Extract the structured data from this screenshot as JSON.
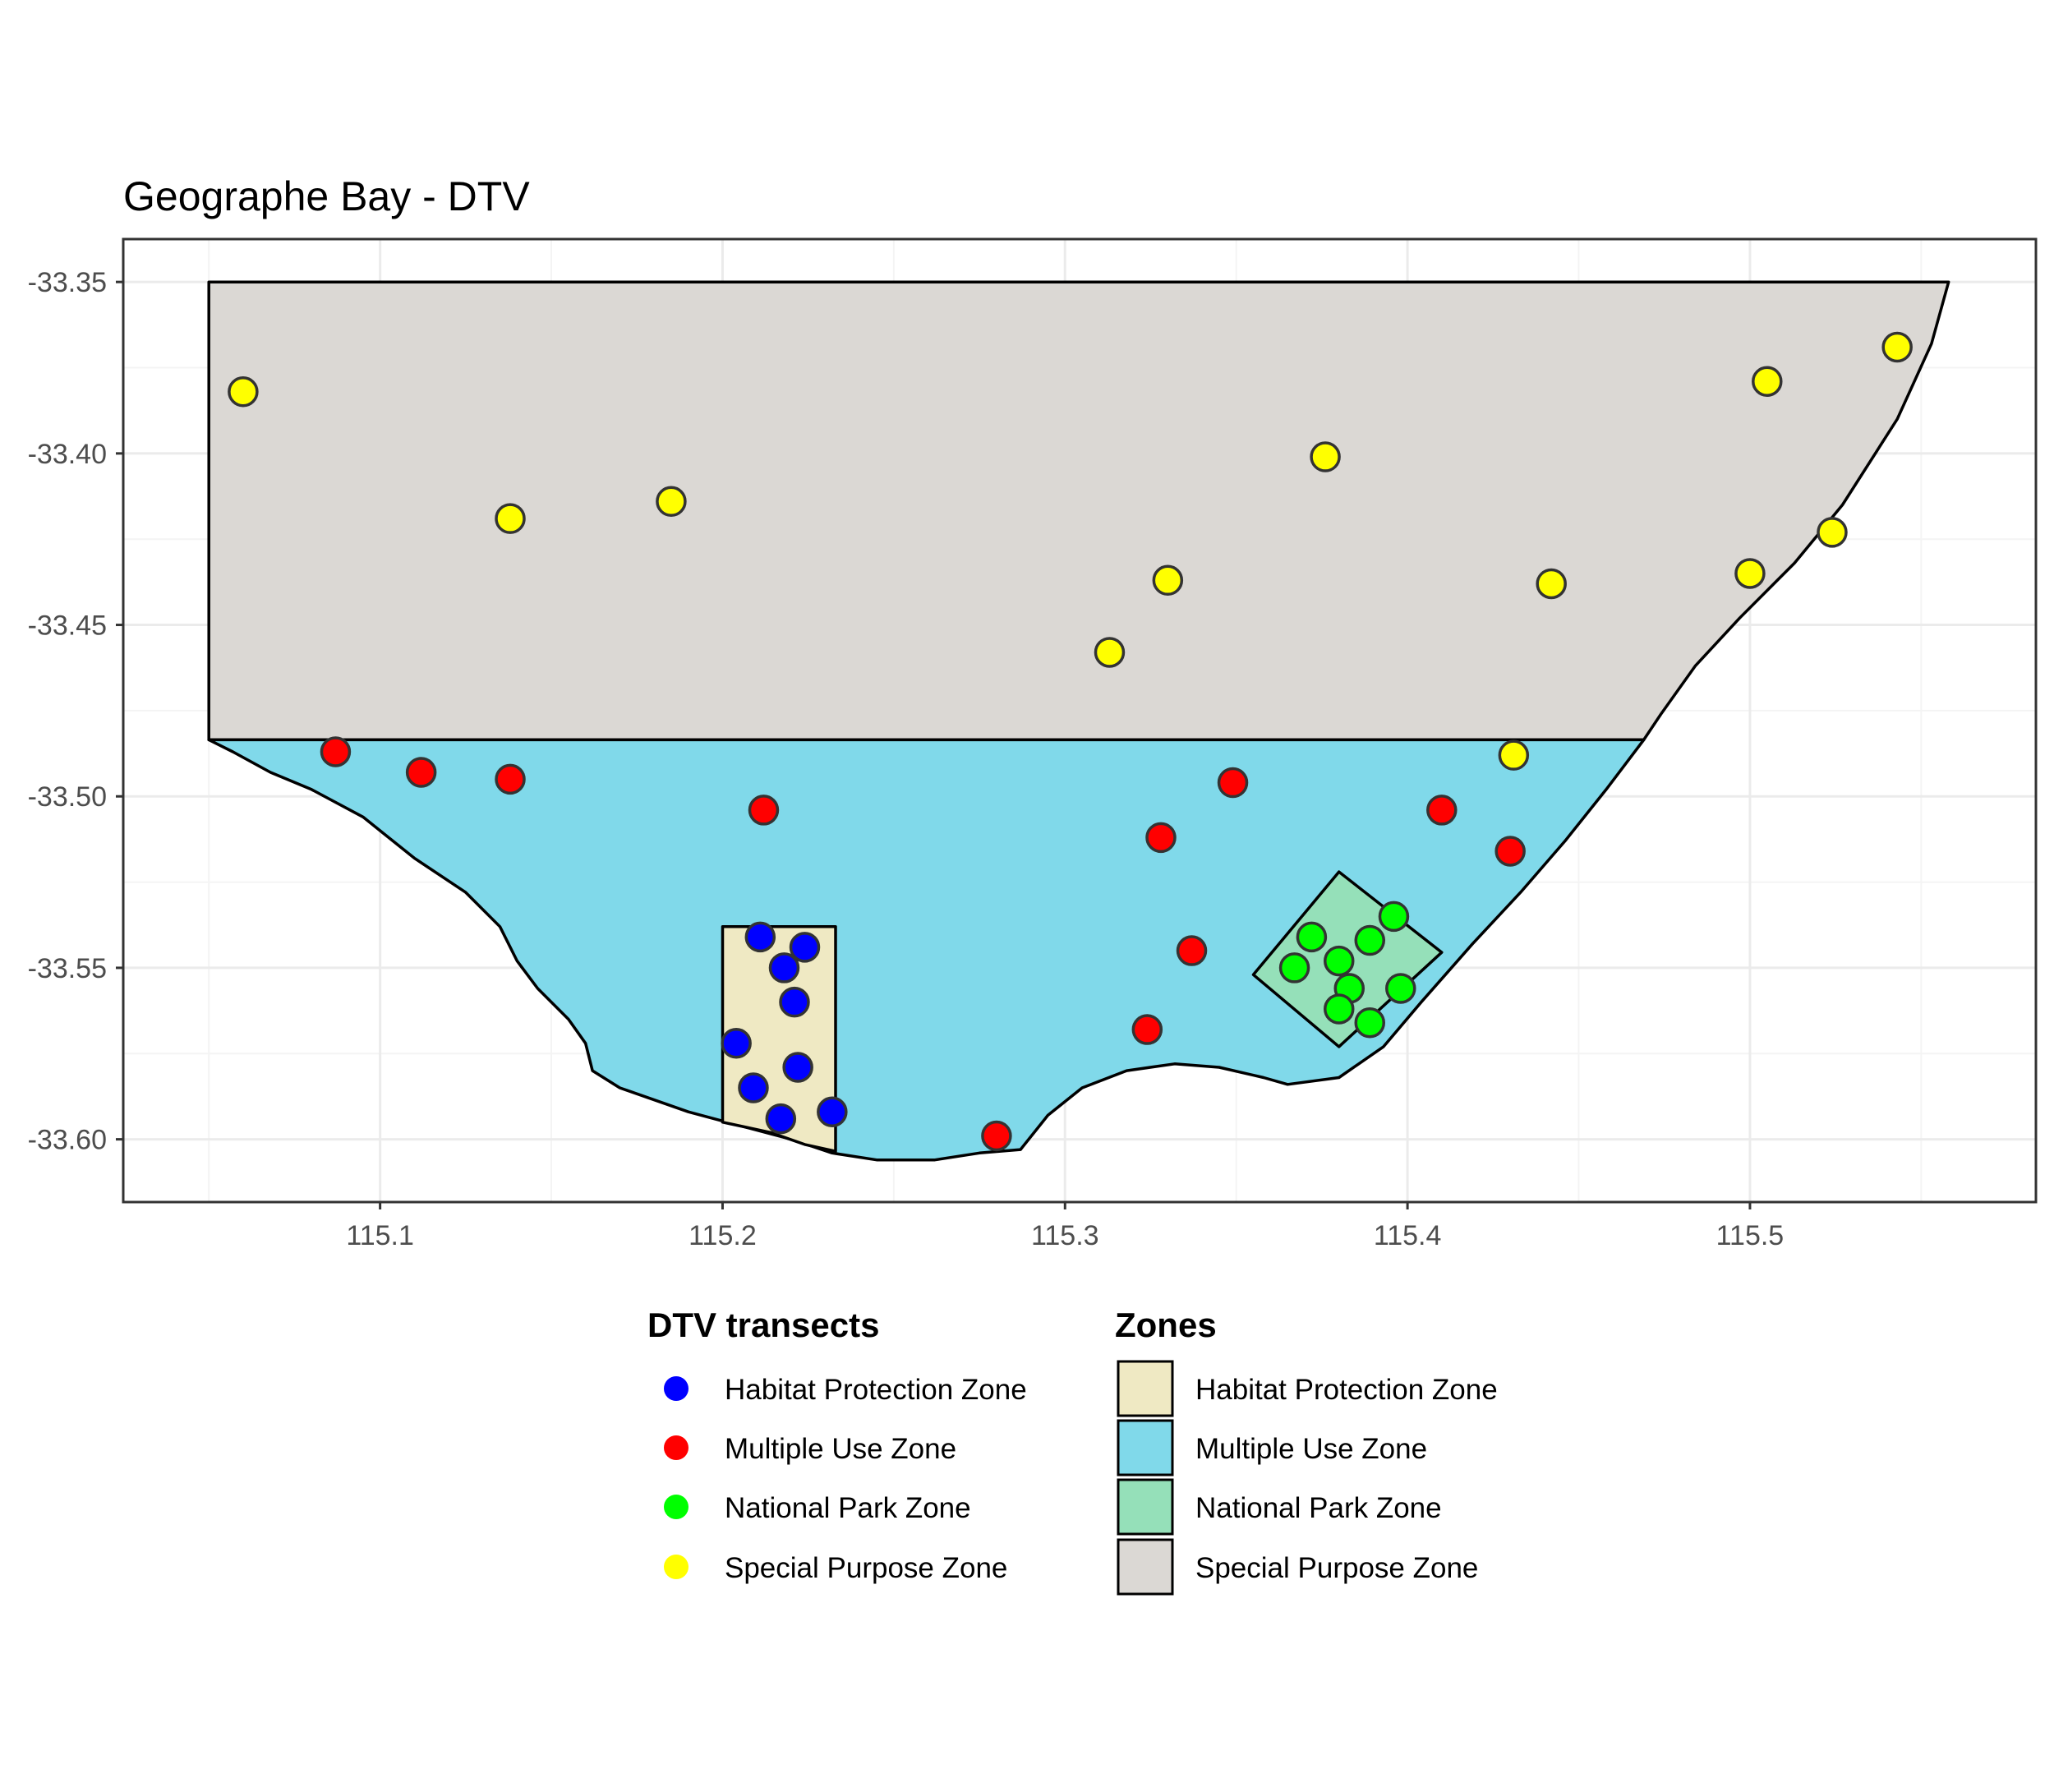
{
  "chart_data": {
    "type": "scatter",
    "title": "Geographe Bay - DTV",
    "xlim": [
      115.025,
      115.5835
    ],
    "ylim": [
      -33.6183,
      -33.3375
    ],
    "x_ticks": [
      "115.1",
      "115.2",
      "115.3",
      "115.4",
      "115.5"
    ],
    "x_tick_values": [
      115.1,
      115.2,
      115.3,
      115.4,
      115.5
    ],
    "y_ticks": [
      "-33.35",
      "-33.40",
      "-33.45",
      "-33.50",
      "-33.55",
      "-33.60"
    ],
    "y_tick_values": [
      -33.35,
      -33.4,
      -33.45,
      -33.5,
      -33.55,
      -33.6
    ],
    "grid": true,
    "legend_position": "bottom",
    "zones": [
      {
        "name": "Special Purpose Zone",
        "color": "#dbd8d4",
        "coords": [
          [
            115.05,
            -33.35
          ],
          [
            115.558,
            -33.35
          ],
          [
            115.553,
            -33.368
          ],
          [
            115.543,
            -33.39
          ],
          [
            115.527,
            -33.415
          ],
          [
            115.513,
            -33.432
          ],
          [
            115.497,
            -33.448
          ],
          [
            115.484,
            -33.462
          ],
          [
            115.474,
            -33.476
          ],
          [
            115.469,
            -33.4835
          ],
          [
            115.05,
            -33.4835
          ]
        ]
      },
      {
        "name": "Multiple Use Zone",
        "color": "#80d9ea",
        "coords": [
          [
            115.05,
            -33.4835
          ],
          [
            115.469,
            -33.4835
          ],
          [
            115.458,
            -33.498
          ],
          [
            115.446,
            -33.513
          ],
          [
            115.433,
            -33.528
          ],
          [
            115.419,
            -33.543
          ],
          [
            115.404,
            -33.56
          ],
          [
            115.393,
            -33.573
          ],
          [
            115.38,
            -33.582
          ],
          [
            115.365,
            -33.584
          ],
          [
            115.358,
            -33.582
          ],
          [
            115.345,
            -33.579
          ],
          [
            115.332,
            -33.578
          ],
          [
            115.318,
            -33.58
          ],
          [
            115.305,
            -33.585
          ],
          [
            115.295,
            -33.593
          ],
          [
            115.287,
            -33.603
          ],
          [
            115.275,
            -33.604
          ],
          [
            115.262,
            -33.606
          ],
          [
            115.245,
            -33.606
          ],
          [
            115.232,
            -33.604
          ],
          [
            115.22,
            -33.6
          ],
          [
            115.205,
            -33.596
          ],
          [
            115.19,
            -33.592
          ],
          [
            115.17,
            -33.585
          ],
          [
            115.162,
            -33.58
          ],
          [
            115.16,
            -33.572
          ],
          [
            115.155,
            -33.565
          ],
          [
            115.146,
            -33.556
          ],
          [
            115.14,
            -33.548
          ],
          [
            115.135,
            -33.538
          ],
          [
            115.125,
            -33.528
          ],
          [
            115.11,
            -33.518
          ],
          [
            115.095,
            -33.506
          ],
          [
            115.08,
            -33.498
          ],
          [
            115.068,
            -33.493
          ],
          [
            115.057,
            -33.487
          ]
        ]
      },
      {
        "name": "Habitat Protection Zone",
        "color": "#efe9c3",
        "coords": [
          [
            115.2,
            -33.538
          ],
          [
            115.233,
            -33.538
          ],
          [
            115.233,
            -33.6035
          ],
          [
            115.224,
            -33.6015
          ],
          [
            115.214,
            -33.598
          ],
          [
            115.2,
            -33.595
          ]
        ]
      },
      {
        "name": "National Park Zone",
        "color": "#95e0b9",
        "coords": [
          [
            115.38,
            -33.522
          ],
          [
            115.41,
            -33.5455
          ],
          [
            115.38,
            -33.573
          ],
          [
            115.355,
            -33.552
          ]
        ]
      }
    ],
    "series": [
      {
        "name": "Habitat Protection Zone",
        "color": "#0000ff",
        "points": [
          [
            115.211,
            -33.541
          ],
          [
            115.224,
            -33.544
          ],
          [
            115.218,
            -33.55
          ],
          [
            115.221,
            -33.56
          ],
          [
            115.204,
            -33.572
          ],
          [
            115.222,
            -33.579
          ],
          [
            115.209,
            -33.585
          ],
          [
            115.232,
            -33.592
          ],
          [
            115.217,
            -33.594
          ]
        ]
      },
      {
        "name": "Multiple Use Zone",
        "color": "#ff0000",
        "points": [
          [
            115.087,
            -33.487
          ],
          [
            115.112,
            -33.493
          ],
          [
            115.138,
            -33.495
          ],
          [
            115.212,
            -33.504
          ],
          [
            115.349,
            -33.496
          ],
          [
            115.328,
            -33.512
          ],
          [
            115.41,
            -33.504
          ],
          [
            115.43,
            -33.516
          ],
          [
            115.337,
            -33.545
          ],
          [
            115.324,
            -33.568
          ],
          [
            115.28,
            -33.599
          ]
        ]
      },
      {
        "name": "National Park Zone",
        "color": "#00ff00",
        "points": [
          [
            115.396,
            -33.535
          ],
          [
            115.372,
            -33.541
          ],
          [
            115.389,
            -33.542
          ],
          [
            115.38,
            -33.548
          ],
          [
            115.367,
            -33.55
          ],
          [
            115.383,
            -33.556
          ],
          [
            115.398,
            -33.556
          ],
          [
            115.38,
            -33.562
          ],
          [
            115.389,
            -33.566
          ]
        ]
      },
      {
        "name": "Special Purpose Zone",
        "color": "#ffff00",
        "points": [
          [
            115.06,
            -33.382
          ],
          [
            115.138,
            -33.419
          ],
          [
            115.185,
            -33.414
          ],
          [
            115.376,
            -33.401
          ],
          [
            115.33,
            -33.437
          ],
          [
            115.313,
            -33.458
          ],
          [
            115.442,
            -33.438
          ],
          [
            115.5,
            -33.435
          ],
          [
            115.524,
            -33.423
          ],
          [
            115.505,
            -33.379
          ],
          [
            115.543,
            -33.369
          ],
          [
            115.431,
            -33.488
          ]
        ]
      }
    ]
  },
  "legend": {
    "transects_title": "DTV transects",
    "zones_title": "Zones",
    "items": [
      "Habitat Protection Zone",
      "Multiple Use Zone",
      "National Park Zone",
      "Special Purpose Zone"
    ]
  }
}
